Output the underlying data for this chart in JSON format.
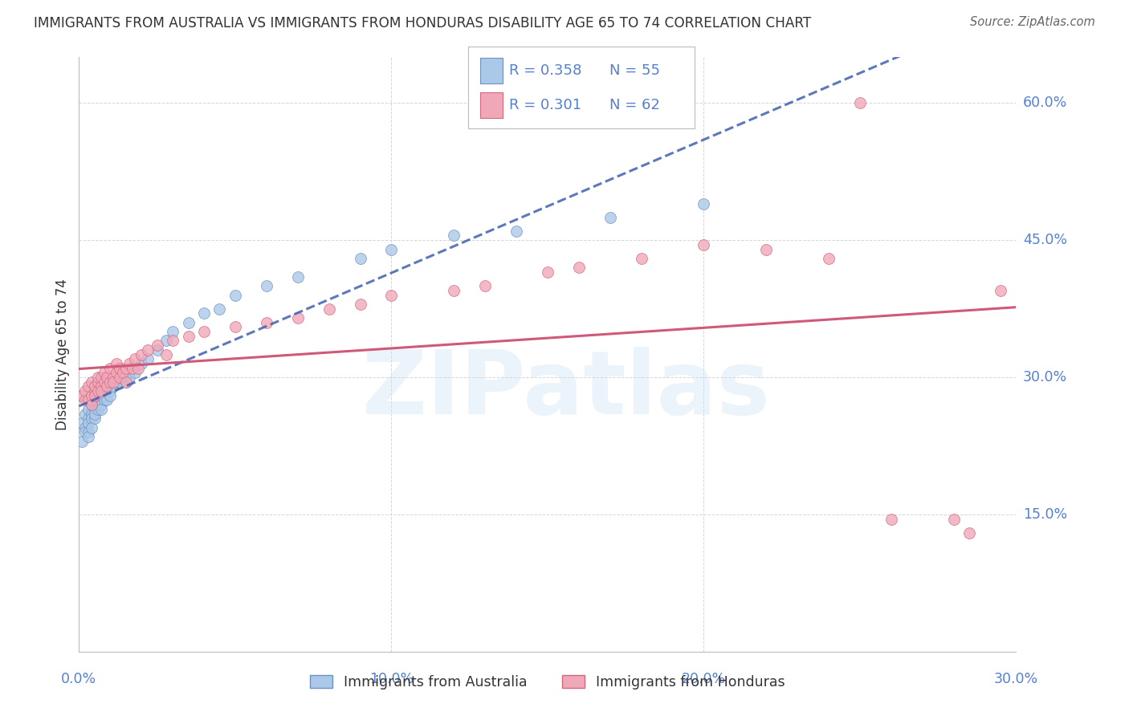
{
  "title": "IMMIGRANTS FROM AUSTRALIA VS IMMIGRANTS FROM HONDURAS DISABILITY AGE 65 TO 74 CORRELATION CHART",
  "source": "Source: ZipAtlas.com",
  "ylabel": "Disability Age 65 to 74",
  "legend_label1": "Immigrants from Australia",
  "legend_label2": "Immigrants from Honduras",
  "R1": 0.358,
  "N1": 55,
  "R2": 0.301,
  "N2": 62,
  "xlim": [
    0.0,
    0.3
  ],
  "ylim": [
    0.0,
    0.65
  ],
  "ytick_vals": [
    0.15,
    0.3,
    0.45,
    0.6
  ],
  "xtick_vals": [
    0.0,
    0.1,
    0.2,
    0.3
  ],
  "color_aus_fill": "#aac8e8",
  "color_aus_edge": "#7090c0",
  "color_aus_line": "#4060b0",
  "color_hon_fill": "#f0a8b8",
  "color_hon_edge": "#d06880",
  "color_hon_line": "#d05878",
  "background": "#ffffff",
  "grid_color": "#cccccc",
  "axis_label_color": "#5580d0",
  "title_color": "#333333",
  "watermark_text": "ZIPatlas",
  "australia_x": [
    0.001,
    0.001,
    0.002,
    0.002,
    0.002,
    0.003,
    0.003,
    0.003,
    0.003,
    0.003,
    0.004,
    0.004,
    0.004,
    0.004,
    0.005,
    0.005,
    0.005,
    0.005,
    0.006,
    0.006,
    0.006,
    0.007,
    0.007,
    0.007,
    0.008,
    0.008,
    0.009,
    0.009,
    0.01,
    0.01,
    0.011,
    0.012,
    0.013,
    0.014,
    0.015,
    0.016,
    0.017,
    0.018,
    0.02,
    0.022,
    0.025,
    0.028,
    0.03,
    0.035,
    0.04,
    0.045,
    0.05,
    0.06,
    0.07,
    0.09,
    0.1,
    0.12,
    0.14,
    0.17,
    0.2
  ],
  "australia_y": [
    0.23,
    0.25,
    0.245,
    0.26,
    0.24,
    0.255,
    0.265,
    0.24,
    0.25,
    0.235,
    0.26,
    0.255,
    0.245,
    0.27,
    0.265,
    0.255,
    0.27,
    0.26,
    0.27,
    0.265,
    0.28,
    0.27,
    0.28,
    0.265,
    0.275,
    0.285,
    0.275,
    0.29,
    0.285,
    0.28,
    0.29,
    0.295,
    0.295,
    0.3,
    0.295,
    0.3,
    0.31,
    0.305,
    0.315,
    0.32,
    0.33,
    0.34,
    0.35,
    0.36,
    0.37,
    0.375,
    0.39,
    0.4,
    0.41,
    0.43,
    0.44,
    0.455,
    0.46,
    0.475,
    0.49
  ],
  "honduras_x": [
    0.001,
    0.002,
    0.002,
    0.003,
    0.003,
    0.004,
    0.004,
    0.004,
    0.005,
    0.005,
    0.005,
    0.006,
    0.006,
    0.006,
    0.007,
    0.007,
    0.007,
    0.008,
    0.008,
    0.009,
    0.009,
    0.01,
    0.01,
    0.011,
    0.011,
    0.012,
    0.012,
    0.013,
    0.013,
    0.014,
    0.015,
    0.015,
    0.016,
    0.017,
    0.018,
    0.019,
    0.02,
    0.022,
    0.025,
    0.028,
    0.03,
    0.035,
    0.04,
    0.05,
    0.06,
    0.07,
    0.08,
    0.09,
    0.1,
    0.12,
    0.13,
    0.15,
    0.16,
    0.18,
    0.2,
    0.22,
    0.24,
    0.25,
    0.26,
    0.28,
    0.285,
    0.295
  ],
  "honduras_y": [
    0.28,
    0.275,
    0.285,
    0.275,
    0.29,
    0.28,
    0.295,
    0.27,
    0.285,
    0.29,
    0.28,
    0.295,
    0.285,
    0.3,
    0.29,
    0.3,
    0.285,
    0.295,
    0.305,
    0.29,
    0.3,
    0.295,
    0.31,
    0.3,
    0.295,
    0.305,
    0.315,
    0.3,
    0.31,
    0.305,
    0.31,
    0.295,
    0.315,
    0.31,
    0.32,
    0.31,
    0.325,
    0.33,
    0.335,
    0.325,
    0.34,
    0.345,
    0.35,
    0.355,
    0.36,
    0.365,
    0.375,
    0.38,
    0.39,
    0.395,
    0.4,
    0.415,
    0.42,
    0.43,
    0.445,
    0.44,
    0.43,
    0.6,
    0.145,
    0.145,
    0.13,
    0.395
  ]
}
